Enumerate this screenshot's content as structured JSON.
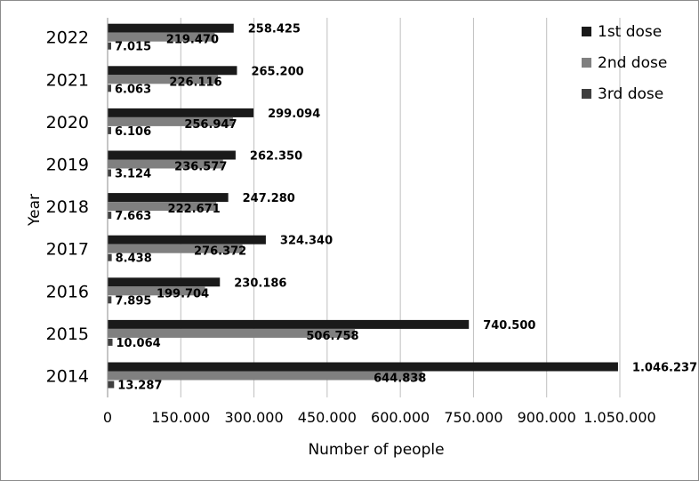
{
  "chart_data": {
    "type": "bar",
    "orientation": "horizontal",
    "categories": [
      "2014",
      "2015",
      "2016",
      "2017",
      "2018",
      "2019",
      "2020",
      "2021",
      "2022"
    ],
    "series": [
      {
        "name": "1st dose",
        "color": "#1a1a1a",
        "values": [
          1046237,
          740500,
          230186,
          324340,
          247280,
          262350,
          299094,
          265200,
          258425
        ],
        "labels": [
          "1.046.237",
          "740.500",
          "230.186",
          "324.340",
          "247.280",
          "262.350",
          "299.094",
          "265.200",
          "258.425"
        ]
      },
      {
        "name": "2nd dose",
        "color": "#808080",
        "values": [
          644838,
          506758,
          199704,
          276372,
          222671,
          236577,
          256947,
          226116,
          219470
        ],
        "labels": [
          "644.838",
          "506.758",
          "199.704",
          "276.372",
          "222.671",
          "236.577",
          "256.947",
          "226.116",
          "219.470"
        ]
      },
      {
        "name": "3rd dose",
        "color": "#3f3f3f",
        "values": [
          13287,
          10064,
          7895,
          8438,
          7663,
          3124,
          6106,
          6063,
          7015
        ],
        "labels": [
          "13.287",
          "10.064",
          "7.895",
          "8.438",
          "7.663",
          "3.124",
          "6.106",
          "6.063",
          "7.015"
        ]
      }
    ],
    "xlabel": "Number of people",
    "ylabel": "Year",
    "xlim": [
      0,
      1050000
    ],
    "xticks": [
      0,
      150000,
      300000,
      450000,
      600000,
      750000,
      900000,
      1050000
    ],
    "xtick_labels": [
      "0",
      "150.000",
      "300.000",
      "450.000",
      "600.000",
      "750.000",
      "900.000",
      "1.050.000"
    ],
    "grid": "vertical",
    "legend": "top-right"
  }
}
